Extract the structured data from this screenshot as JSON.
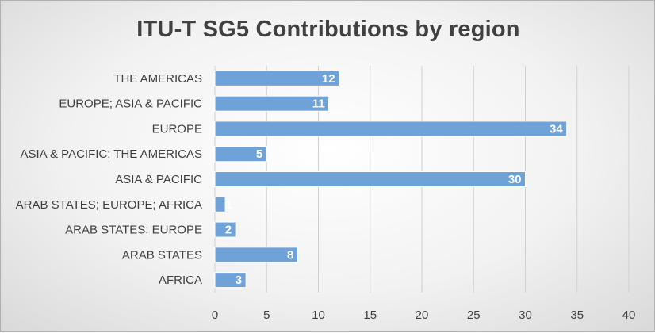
{
  "chart_data": {
    "type": "bar",
    "orientation": "horizontal",
    "title": "ITU-T SG5 Contributions by region",
    "categories": [
      "THE AMERICAS",
      "EUROPE; ASIA & PACIFIC",
      "EUROPE",
      "ASIA & PACIFIC; THE AMERICAS",
      "ASIA & PACIFIC",
      "ARAB STATES; EUROPE; AFRICA",
      "ARAB STATES; EUROPE",
      "ARAB STATES",
      "AFRICA"
    ],
    "values": [
      12,
      11,
      34,
      5,
      30,
      1,
      2,
      8,
      3
    ],
    "xlim": [
      0,
      40
    ],
    "xticks": [
      0,
      5,
      10,
      15,
      20,
      25,
      30,
      35,
      40
    ],
    "xlabel": "",
    "ylabel": "",
    "grid": "vertical",
    "legend": "none",
    "bar_color": "#6fa2d8"
  }
}
